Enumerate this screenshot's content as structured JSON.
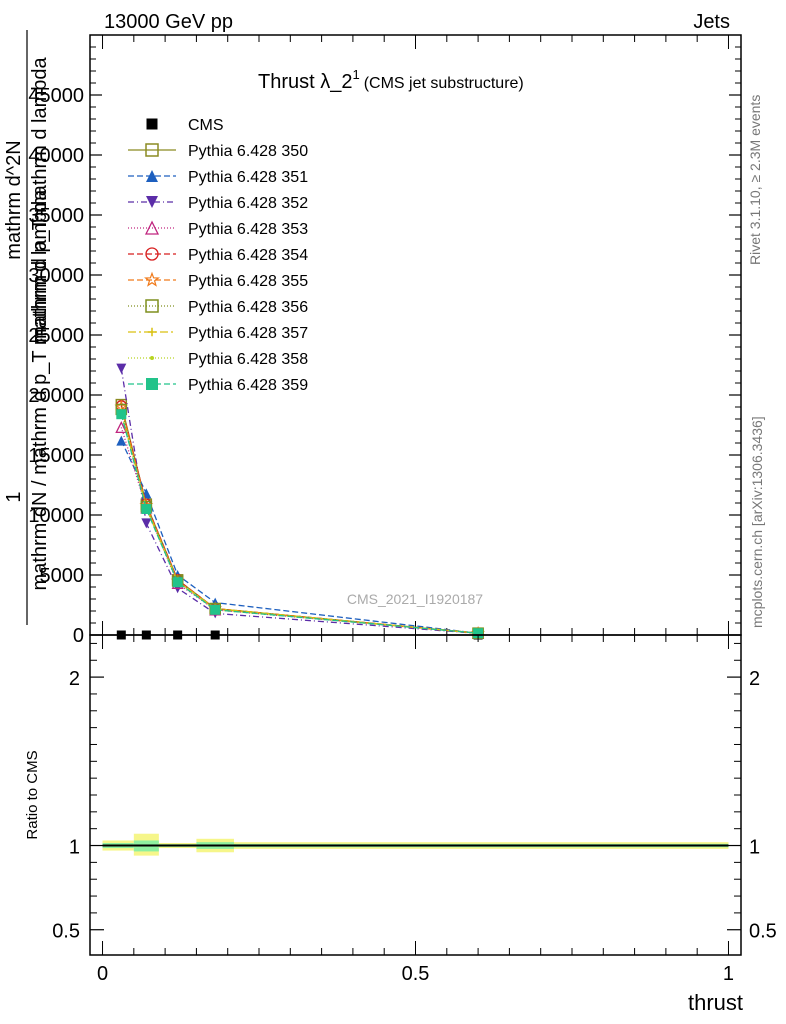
{
  "header": {
    "energy_label": "13000 GeV pp",
    "category_label": "Jets"
  },
  "side_labels": {
    "rivet": "Rivet 3.1.10, ≥ 2.3M events",
    "mcplots": "mcplots.cern.ch [arXiv:1306.3436]"
  },
  "watermark": "CMS_2021_I1920187",
  "chart_data": [
    {
      "type": "line",
      "title": "Thrust λ_2",
      "title_sup": "1",
      "subtitle": "(CMS jet substructure)",
      "ylabel_lines": [
        "1",
        "mathrm dN / mathrm d p_T mathrm d lambda",
        "mathrm d^2N",
        "mathrm d p_T mathrm d lambda"
      ],
      "ylim": [
        0,
        50000
      ],
      "yticks": [
        0,
        5000,
        10000,
        15000,
        20000,
        25000,
        30000,
        35000,
        40000,
        45000
      ],
      "ytick_labels": [
        "0",
        "5000",
        "10000",
        "15000",
        "20000",
        "25000",
        "30000",
        "35000",
        "40000",
        "45000"
      ],
      "xlim": [
        -0.02,
        1.02
      ],
      "x": [
        0.03,
        0.07,
        0.12,
        0.18,
        0.6
      ],
      "legend_position": "top-left",
      "series": [
        {
          "name": "CMS",
          "values": [
            0,
            0,
            0,
            0,
            0
          ],
          "color": "#000000",
          "marker": "square-filled",
          "dash": "none"
        },
        {
          "name": "Pythia 6.428 350",
          "values": [
            19200,
            10900,
            4600,
            2200,
            150
          ],
          "color": "#8b8b22",
          "marker": "square-open",
          "dash": "solid"
        },
        {
          "name": "Pythia 6.428 351",
          "values": [
            16200,
            11800,
            5000,
            2700,
            150
          ],
          "color": "#1d5fbf",
          "marker": "triangle-up-filled",
          "dash": "6,3"
        },
        {
          "name": "Pythia 6.428 352",
          "values": [
            22200,
            9300,
            3900,
            1800,
            130
          ],
          "color": "#5b2da8",
          "marker": "triangle-down-filled",
          "dash": "6,3,1,3"
        },
        {
          "name": "Pythia 6.428 353",
          "values": [
            17300,
            10600,
            4300,
            2100,
            140
          ],
          "color": "#c0267f",
          "marker": "triangle-up-open",
          "dash": "1,2"
        },
        {
          "name": "Pythia 6.428 354",
          "values": [
            19100,
            10900,
            4600,
            2200,
            150
          ],
          "color": "#d81e1e",
          "marker": "circle-open",
          "dash": "6,3"
        },
        {
          "name": "Pythia 6.428 355",
          "values": [
            19000,
            10800,
            4500,
            2200,
            150
          ],
          "color": "#f07a1a",
          "marker": "star-open",
          "dash": "6,3"
        },
        {
          "name": "Pythia 6.428 356",
          "values": [
            18800,
            10700,
            4500,
            2200,
            150
          ],
          "color": "#7f8f1e",
          "marker": "square-open",
          "dash": "1,2"
        },
        {
          "name": "Pythia 6.428 357",
          "values": [
            18600,
            10600,
            4500,
            2200,
            150
          ],
          "color": "#d9c010",
          "marker": "cross",
          "dash": "8,3,2,3"
        },
        {
          "name": "Pythia 6.428 358",
          "values": [
            18500,
            10600,
            4400,
            2100,
            150
          ],
          "color": "#b6d420",
          "marker": "dot",
          "dash": "1,2"
        },
        {
          "name": "Pythia 6.428 359",
          "values": [
            18400,
            10500,
            4400,
            2100,
            150
          ],
          "color": "#22c38a",
          "marker": "square-filled",
          "dash": "6,3"
        }
      ]
    },
    {
      "type": "line",
      "title": "",
      "ylabel": "Ratio to CMS",
      "ylim": [
        0.35,
        2.25
      ],
      "yticks": [
        0.5,
        1,
        2
      ],
      "ytick_labels": [
        "0.5",
        "1",
        "2"
      ],
      "xlim": [
        -0.02,
        1.02
      ],
      "xticks": [
        0,
        0.5,
        1
      ],
      "xtick_labels": [
        "0",
        "0.5",
        "1"
      ],
      "xlabel": "thrust",
      "reference": 1,
      "bands": [
        {
          "x": [
            0.0,
            0.05
          ],
          "outer": [
            0.97,
            1.03
          ],
          "inner": [
            0.985,
            1.015
          ]
        },
        {
          "x": [
            0.05,
            0.09
          ],
          "outer": [
            0.94,
            1.07
          ],
          "inner": [
            0.965,
            1.03
          ]
        },
        {
          "x": [
            0.09,
            0.15
          ],
          "outer": [
            0.985,
            1.015
          ],
          "inner": [
            0.992,
            1.008
          ]
        },
        {
          "x": [
            0.15,
            0.21
          ],
          "outer": [
            0.96,
            1.04
          ],
          "inner": [
            0.98,
            1.02
          ]
        },
        {
          "x": [
            0.21,
            1.0
          ],
          "outer": [
            0.98,
            1.02
          ],
          "inner": [
            0.99,
            1.01
          ]
        }
      ],
      "band_colors": {
        "outer": "#f6f68a",
        "inner": "#8ef0a0"
      }
    }
  ]
}
